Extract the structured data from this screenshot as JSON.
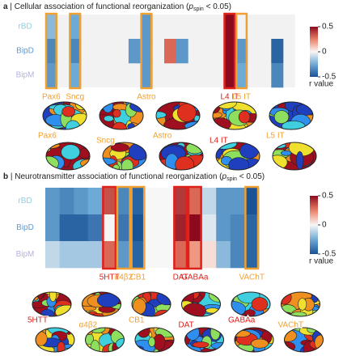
{
  "chart_data": [
    {
      "type": "heatmap",
      "panel": "a",
      "title": " | Cellular association of functional reorganization (",
      "title_symbol": "p",
      "title_subscript": "spin",
      "title_tail": " < 0.05)",
      "rows": [
        "rBD",
        "BipD",
        "BipM"
      ],
      "row_colors": [
        "#8fcfe0",
        "#5b9bd5",
        "#b3b3e3"
      ],
      "categories": [
        "Pax6",
        null,
        "Sncg",
        null,
        null,
        null,
        null,
        null,
        "Astro",
        null,
        null,
        null,
        null,
        null,
        null,
        "L4 IT",
        "L5 IT",
        null,
        null,
        null,
        null
      ],
      "category_colors": [
        "#f0a030",
        null,
        "#f0a030",
        null,
        null,
        null,
        null,
        null,
        "#f0a030",
        null,
        null,
        null,
        null,
        null,
        null,
        "#e0201b",
        "#f0a030",
        null,
        null,
        null,
        null
      ],
      "values": [
        [
          -0.2,
          null,
          -0.25,
          null,
          null,
          null,
          null,
          null,
          -0.3,
          null,
          null,
          null,
          null,
          null,
          null,
          0.5,
          null,
          null,
          null,
          null,
          null
        ],
        [
          -0.35,
          null,
          -0.35,
          null,
          null,
          null,
          null,
          -0.3,
          -0.3,
          null,
          0.3,
          -0.3,
          null,
          null,
          null,
          0.5,
          -0.3,
          null,
          null,
          -0.45,
          null
        ],
        [
          -0.3,
          null,
          -0.25,
          null,
          null,
          null,
          null,
          null,
          -0.3,
          null,
          null,
          null,
          null,
          null,
          null,
          0.5,
          -0.25,
          null,
          null,
          -0.35,
          null
        ]
      ],
      "zlim": [
        -0.5,
        0.5
      ],
      "zticks": [
        0.5,
        0,
        -0.5
      ],
      "colorbar_label": "r value",
      "colormap": "RdBu_r",
      "brain_maps": [
        {
          "label": "Pax6",
          "color": "#f0a030"
        },
        {
          "label": "Sncg",
          "color": "#f0a030"
        },
        {
          "label": "Astro",
          "color": "#f0a030"
        },
        {
          "label": "L4 IT",
          "color": "#e0201b"
        },
        {
          "label": "L5 IT",
          "color": "#f0a030"
        }
      ]
    },
    {
      "type": "heatmap",
      "panel": "b",
      "title": " | Neurotransmitter association of functional reorganization (",
      "title_symbol": "p",
      "title_subscript": "spin",
      "title_tail": " < 0.05)",
      "rows": [
        "rBD",
        "BipD",
        "BipM"
      ],
      "row_colors": [
        "#8fcfe0",
        "#5b9bd5",
        "#b3b3e3"
      ],
      "categories": [
        null,
        null,
        null,
        null,
        "5HTT",
        "α4β2",
        "CB1",
        null,
        null,
        "DAT",
        "GABAa",
        null,
        null,
        null,
        "VAChT"
      ],
      "category_colors": [
        null,
        null,
        null,
        null,
        "#e0201b",
        "#f0a030",
        "#f0a030",
        null,
        null,
        "#e0201b",
        "#e0201b",
        null,
        null,
        null,
        "#f0a030"
      ],
      "values": [
        [
          -0.3,
          -0.35,
          -0.3,
          -0.25,
          0.35,
          -0.35,
          -0.45,
          null,
          null,
          0.4,
          0.3,
          -0.1,
          -0.3,
          -0.3,
          -0.5
        ],
        [
          -0.3,
          -0.45,
          -0.45,
          -0.4,
          0,
          -0.4,
          -0.5,
          null,
          null,
          0.45,
          0.5,
          -0.05,
          -0.3,
          -0.35,
          -0.45
        ],
        [
          -0.1,
          -0.15,
          -0.15,
          -0.15,
          0.3,
          -0.3,
          -0.45,
          null,
          null,
          0.3,
          0.2,
          0.05,
          -0.2,
          -0.35,
          -0.45
        ]
      ],
      "zlim": [
        -0.5,
        0.5
      ],
      "zticks": [
        0.5,
        0,
        -0.5
      ],
      "colorbar_label": "r value",
      "colormap": "RdBu_r",
      "brain_maps": [
        {
          "label": "5HTT",
          "color": "#e0201b"
        },
        {
          "label": "α4β2",
          "color": "#f0a030"
        },
        {
          "label": "CB1",
          "color": "#f0a030"
        },
        {
          "label": "DAT",
          "color": "#e0201b"
        },
        {
          "label": "GABAa",
          "color": "#e0201b"
        },
        {
          "label": "VAChT",
          "color": "#f0a030"
        }
      ]
    }
  ]
}
